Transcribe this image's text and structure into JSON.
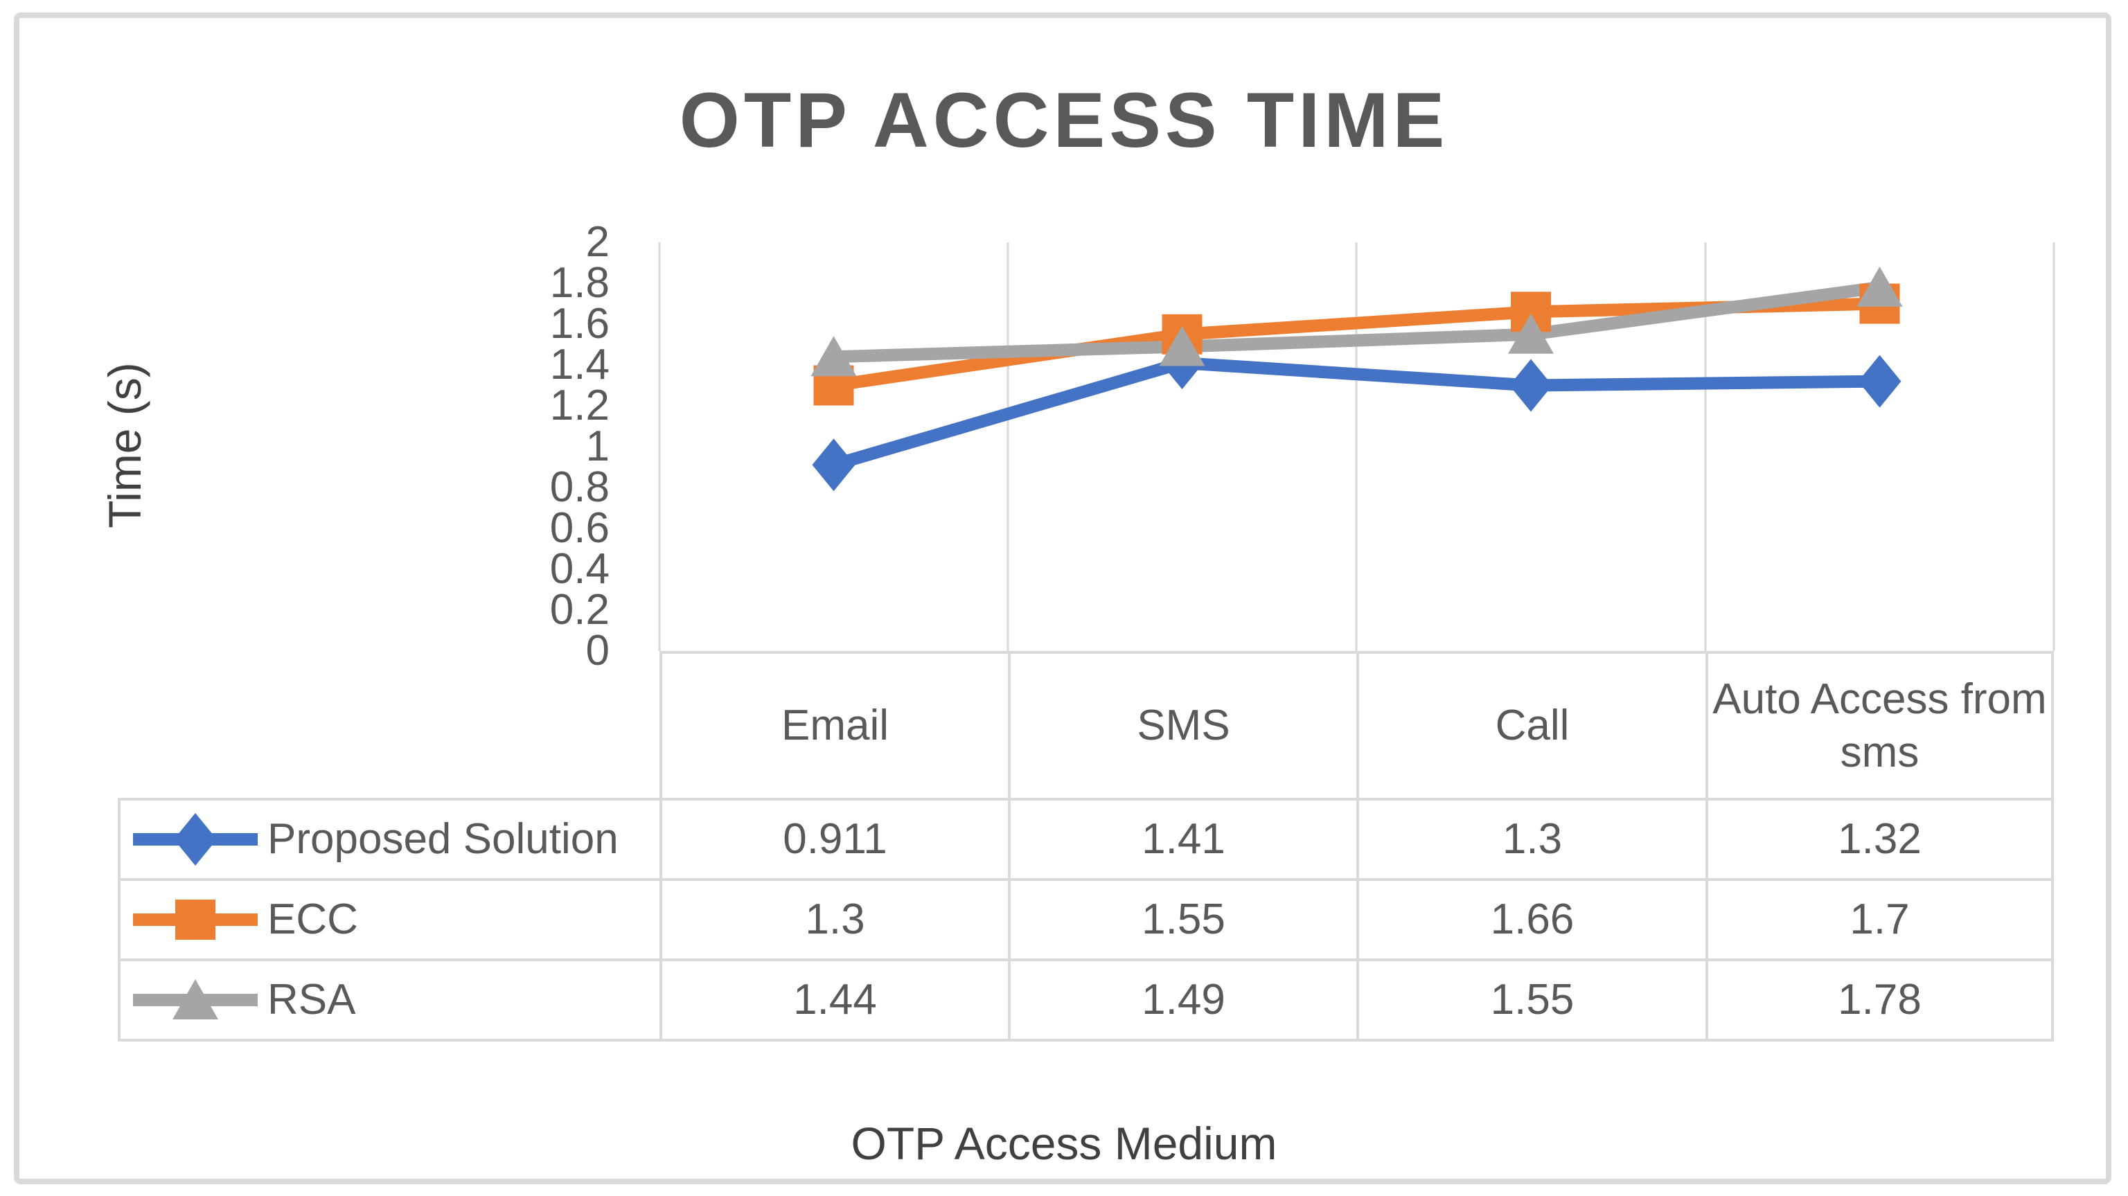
{
  "frame": {
    "border_color": "#D9D9D9",
    "background": "#FFFFFF"
  },
  "styles": {
    "title_color": "#595959",
    "text_color": "#595959",
    "axis_title_color": "#404040",
    "grid_color": "#D9D9D9"
  },
  "chart_data": {
    "type": "line",
    "title": "OTP ACCESS TIME",
    "xlabel": "OTP Access Medium",
    "ylabel": "Time (s)",
    "categories": [
      "Email",
      "SMS",
      "Call",
      "Auto Access from sms"
    ],
    "series": [
      {
        "name": "Proposed Solution",
        "color": "#4472C4",
        "marker": "diamond",
        "values": [
          0.911,
          1.41,
          1.3,
          1.32
        ]
      },
      {
        "name": "ECC",
        "color": "#ED7D31",
        "marker": "square",
        "values": [
          1.3,
          1.55,
          1.66,
          1.7
        ]
      },
      {
        "name": "RSA",
        "color": "#A5A5A5",
        "marker": "triangle",
        "values": [
          1.44,
          1.49,
          1.55,
          1.78
        ]
      }
    ],
    "y_axis": {
      "min": 0,
      "max": 2,
      "step": 0.2,
      "tick_labels": [
        "2",
        "1.8",
        "1.6",
        "1.4",
        "1.2",
        "1",
        "0.8",
        "0.6",
        "0.4",
        "0.2",
        "0"
      ]
    },
    "x_axis": {
      "gridlines": "category-boundaries"
    },
    "legend_position": "data-table-left-column",
    "data_table_shown": true
  }
}
